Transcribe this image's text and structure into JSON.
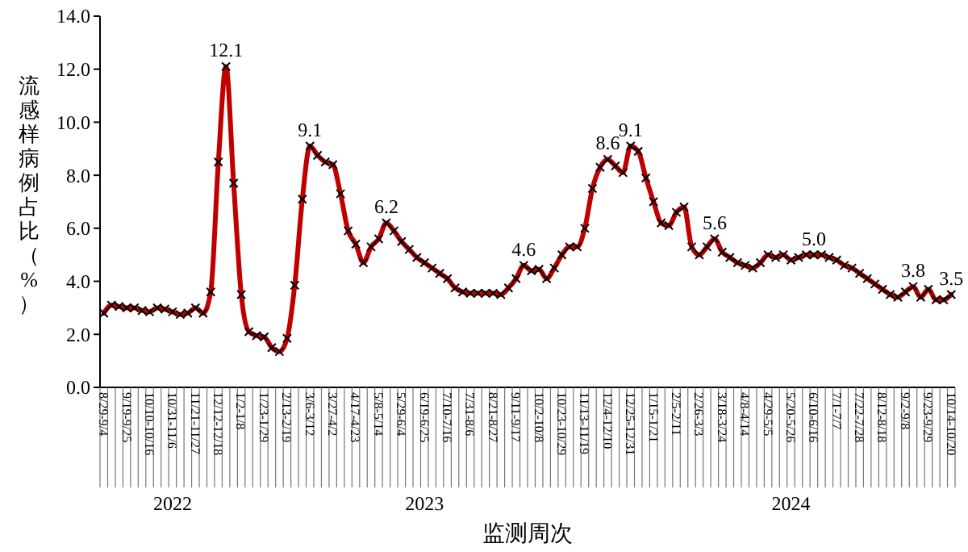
{
  "chart_data": {
    "type": "line",
    "xlabel": "监测周次",
    "ylabel": "流感样病例占比（%）",
    "categories": [
      "8/29-9/4",
      null,
      null,
      "9/19-9/25",
      null,
      null,
      "10/10-10/16",
      null,
      null,
      "10/31-11/6",
      null,
      null,
      "11/21-11/27",
      null,
      null,
      "12/12-12/18",
      null,
      null,
      "1/2-1/8",
      null,
      null,
      "1/23-1/29",
      null,
      null,
      "2/13-2/19",
      null,
      null,
      "3/6-3/12",
      null,
      null,
      "3/27-4/2",
      null,
      null,
      "4/17-4/23",
      null,
      null,
      "5/8-5/14",
      null,
      null,
      "5/29-6/4",
      null,
      null,
      "6/19-6/25",
      null,
      null,
      "7/10-7/16",
      null,
      null,
      "7/31-8/6",
      null,
      null,
      "8/21-8/27",
      null,
      null,
      "9/11-9/17",
      null,
      null,
      "10/2-10/8",
      null,
      null,
      "10/23-10/29",
      null,
      null,
      "11/13-11/19",
      null,
      null,
      "12/4-12/10",
      null,
      null,
      "12/25-12/31",
      null,
      null,
      "1/15-1/21",
      null,
      null,
      "2/5-2/11",
      null,
      null,
      "2/26-3/3",
      null,
      null,
      "3/18-3/24",
      null,
      null,
      "4/8-4/14",
      null,
      null,
      "4/29-5/5",
      null,
      null,
      "5/20-5/26",
      null,
      null,
      "6/10-6/16",
      null,
      null,
      "7/1-7/7",
      null,
      null,
      "7/22-7/28",
      null,
      null,
      "8/12-8/18",
      null,
      null,
      "9/2-9/8",
      null,
      null,
      "9/23-9/29",
      null,
      null,
      "10/14-10/20"
    ],
    "series": [
      {
        "color": "#c00000",
        "values": [
          2.8,
          3.1,
          3.05,
          3.0,
          3.0,
          2.9,
          2.85,
          3.0,
          2.95,
          2.85,
          2.75,
          2.8,
          3.0,
          2.8,
          3.6,
          8.5,
          12.1,
          7.7,
          3.5,
          2.1,
          1.95,
          1.9,
          1.5,
          1.35,
          1.85,
          3.85,
          7.1,
          9.1,
          8.75,
          8.5,
          8.4,
          7.3,
          5.9,
          5.4,
          4.7,
          5.3,
          5.6,
          6.2,
          5.9,
          5.5,
          5.2,
          4.9,
          4.7,
          4.5,
          4.3,
          4.1,
          3.75,
          3.6,
          3.55,
          3.55,
          3.55,
          3.55,
          3.5,
          3.75,
          4.1,
          4.6,
          4.4,
          4.45,
          4.1,
          4.5,
          5.0,
          5.3,
          5.3,
          6.0,
          7.5,
          8.3,
          8.6,
          8.35,
          8.1,
          9.1,
          8.9,
          7.9,
          7.0,
          6.2,
          6.1,
          6.6,
          6.8,
          5.3,
          5.0,
          5.3,
          5.6,
          5.1,
          4.9,
          4.7,
          4.6,
          4.5,
          4.7,
          5.0,
          4.9,
          5.0,
          4.8,
          4.9,
          5.0,
          5.0,
          5.0,
          4.9,
          4.8,
          4.6,
          4.5,
          4.3,
          4.1,
          3.9,
          3.7,
          3.5,
          3.4,
          3.6,
          3.8,
          3.4,
          3.7,
          3.3,
          3.3,
          3.5
        ],
        "value_labels": [
          null,
          null,
          null,
          null,
          null,
          null,
          null,
          null,
          null,
          null,
          null,
          null,
          null,
          null,
          null,
          null,
          "12.1",
          null,
          null,
          null,
          null,
          null,
          null,
          null,
          null,
          null,
          null,
          "9.1",
          null,
          null,
          null,
          null,
          null,
          null,
          null,
          null,
          null,
          "6.2",
          null,
          null,
          null,
          null,
          null,
          null,
          null,
          null,
          null,
          null,
          null,
          null,
          null,
          null,
          null,
          null,
          null,
          "4.6",
          null,
          null,
          null,
          null,
          null,
          null,
          null,
          null,
          null,
          null,
          "8.6",
          null,
          null,
          "9.1",
          null,
          null,
          null,
          null,
          null,
          null,
          null,
          null,
          null,
          null,
          "5.6",
          null,
          null,
          null,
          null,
          null,
          null,
          null,
          null,
          null,
          null,
          null,
          null,
          "5.0",
          null,
          null,
          null,
          null,
          null,
          null,
          null,
          null,
          null,
          null,
          null,
          null,
          "3.8",
          null,
          null,
          null,
          null,
          "3.5"
        ]
      }
    ],
    "ylim": [
      0,
      14
    ],
    "yticks": [
      {
        "value": 0,
        "label": "0.0"
      },
      {
        "value": 2,
        "label": "2.0"
      },
      {
        "value": 4,
        "label": "4.0"
      },
      {
        "value": 6,
        "label": "6.0"
      },
      {
        "value": 8,
        "label": "8.0"
      },
      {
        "value": 10,
        "label": "10.0"
      },
      {
        "value": 12,
        "label": "12.0"
      },
      {
        "value": 14,
        "label": "14.0"
      }
    ],
    "marker": "cross",
    "line_style": "solid",
    "grid": false,
    "annotations": [
      {
        "text": "2022",
        "x": "10/31-11/6"
      },
      {
        "text": "2023",
        "x": "6/19-6/25"
      },
      {
        "text": "2024",
        "x": "5/20-5/26"
      }
    ]
  }
}
